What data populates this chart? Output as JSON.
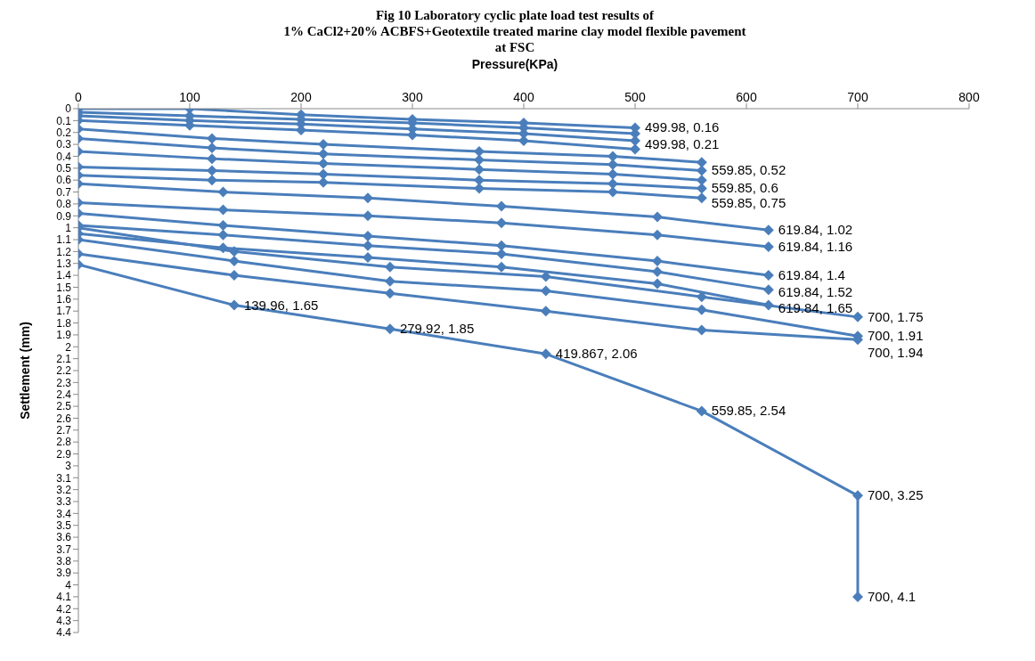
{
  "chart_data": {
    "type": "line",
    "title": "Fig 10 Laboratory cyclic plate load test results of\n1% CaCl2+20% ACBFS+Geotextile treated marine clay model  flexible pavement\nat FSC",
    "xlabel": "Pressure(KPa)",
    "ylabel": "Settlement (mm)",
    "xlim": [
      0,
      800
    ],
    "xticks": [
      0,
      100,
      200,
      300,
      400,
      500,
      600,
      700,
      800
    ],
    "ylim": [
      4.4,
      0
    ],
    "yticks": [
      0,
      0.1,
      0.2,
      0.3,
      0.4,
      0.5,
      0.6,
      0.7,
      0.8,
      0.9,
      1,
      1.1,
      1.2,
      1.3,
      1.4,
      1.5,
      1.6,
      1.7,
      1.8,
      1.9,
      2,
      2.1,
      2.2,
      2.3,
      2.4,
      2.5,
      2.6,
      2.7,
      2.8,
      2.9,
      3,
      3.1,
      3.2,
      3.3,
      3.4,
      3.5,
      3.6,
      3.7,
      3.8,
      3.9,
      4,
      4.1,
      4.2,
      4.3,
      4.4
    ],
    "marker": "diamond",
    "line_style": "solid",
    "series": [
      {
        "color": "#4a7ebb",
        "x": [
          0,
          100,
          200,
          300,
          400,
          499.98
        ],
        "values": [
          0,
          0,
          0.05,
          0.09,
          0.12,
          0.16
        ]
      },
      {
        "color": "#4a7ebb",
        "x": [
          0,
          100,
          200,
          300,
          400,
          499.98
        ],
        "values": [
          0.03,
          0.06,
          0.09,
          0.12,
          0.16,
          0.21
        ]
      },
      {
        "color": "#4a7ebb",
        "x": [
          0,
          100,
          200,
          300,
          400,
          499.98
        ],
        "values": [
          0.06,
          0.1,
          0.13,
          0.17,
          0.21,
          0.27
        ]
      },
      {
        "color": "#4a7ebb",
        "x": [
          0,
          100,
          200,
          300,
          400,
          499.98
        ],
        "values": [
          0.1,
          0.14,
          0.18,
          0.22,
          0.27,
          0.34
        ]
      },
      {
        "color": "#4a7ebb",
        "x": [
          0,
          120,
          220,
          360,
          480,
          559.85
        ],
        "values": [
          0.17,
          0.25,
          0.3,
          0.36,
          0.4,
          0.45
        ]
      },
      {
        "color": "#4a7ebb",
        "x": [
          0,
          120,
          220,
          360,
          480,
          559.85
        ],
        "values": [
          0.25,
          0.33,
          0.38,
          0.43,
          0.47,
          0.52
        ]
      },
      {
        "color": "#4a7ebb",
        "x": [
          0,
          120,
          220,
          360,
          480,
          559.85
        ],
        "values": [
          0.36,
          0.42,
          0.46,
          0.51,
          0.55,
          0.6
        ]
      },
      {
        "color": "#4a7ebb",
        "x": [
          0,
          120,
          220,
          360,
          480,
          559.85
        ],
        "values": [
          0.49,
          0.52,
          0.55,
          0.6,
          0.63,
          0.67
        ]
      },
      {
        "color": "#4a7ebb",
        "x": [
          0,
          120,
          220,
          360,
          480,
          559.85
        ],
        "values": [
          0.56,
          0.6,
          0.62,
          0.67,
          0.7,
          0.75
        ]
      },
      {
        "color": "#4a7ebb",
        "x": [
          0,
          130,
          260,
          380,
          520,
          619.84
        ],
        "values": [
          0.63,
          0.7,
          0.75,
          0.82,
          0.91,
          1.02
        ]
      },
      {
        "color": "#4a7ebb",
        "x": [
          0,
          130,
          260,
          380,
          520,
          619.84
        ],
        "values": [
          0.79,
          0.85,
          0.9,
          0.96,
          1.06,
          1.16
        ]
      },
      {
        "color": "#4a7ebb",
        "x": [
          0,
          130,
          260,
          380,
          520,
          619.84
        ],
        "values": [
          0.88,
          0.98,
          1.07,
          1.15,
          1.28,
          1.4
        ]
      },
      {
        "color": "#4a7ebb",
        "x": [
          0,
          130,
          260,
          380,
          520,
          619.84
        ],
        "values": [
          0.98,
          1.06,
          1.15,
          1.22,
          1.37,
          1.52
        ]
      },
      {
        "color": "#4a7ebb",
        "x": [
          0,
          130,
          260,
          380,
          520,
          619.84
        ],
        "values": [
          1.05,
          1.17,
          1.25,
          1.33,
          1.47,
          1.65
        ]
      },
      {
        "color": "#4a7ebb",
        "x": [
          0,
          139.96,
          279.92,
          419.867,
          559.85,
          700
        ],
        "values": [
          1,
          1.2,
          1.33,
          1.41,
          1.58,
          1.75
        ]
      },
      {
        "color": "#4a7ebb",
        "x": [
          0,
          139.96,
          279.92,
          419.867,
          559.85,
          700
        ],
        "values": [
          1.1,
          1.28,
          1.45,
          1.53,
          1.69,
          1.91
        ]
      },
      {
        "color": "#4a7ebb",
        "x": [
          0,
          139.96,
          279.92,
          419.867,
          559.85,
          700
        ],
        "values": [
          1.22,
          1.4,
          1.55,
          1.7,
          1.86,
          1.94
        ]
      },
      {
        "color": "#4a7ebb",
        "x": [
          0,
          139.96,
          279.92,
          419.867,
          559.85,
          700,
          700
        ],
        "values": [
          1.31,
          1.65,
          1.85,
          2.06,
          2.54,
          3.25,
          4.1
        ]
      }
    ],
    "annotations": [
      {
        "text": "499.98, 0.16",
        "x": 499.98,
        "y": 0.16
      },
      {
        "text": "499.98, 0.21",
        "x": 499.98,
        "y": 0.21
      },
      {
        "text": "559.85, 0.52",
        "x": 559.85,
        "y": 0.52
      },
      {
        "text": "559.85, 0.6",
        "x": 559.85,
        "y": 0.6
      },
      {
        "text": "559.85, 0.75",
        "x": 559.85,
        "y": 0.75
      },
      {
        "text": "619.84, 1.02",
        "x": 619.84,
        "y": 1.02
      },
      {
        "text": "619.84, 1.16",
        "x": 619.84,
        "y": 1.16
      },
      {
        "text": "619.84, 1.4",
        "x": 619.84,
        "y": 1.4
      },
      {
        "text": "619.84, 1.52",
        "x": 619.84,
        "y": 1.52
      },
      {
        "text": "619.84, 1.65",
        "x": 619.84,
        "y": 1.65
      },
      {
        "text": "700, 1.75",
        "x": 700,
        "y": 1.75
      },
      {
        "text": "700, 1.91",
        "x": 700,
        "y": 1.91
      },
      {
        "text": "700, 1.94",
        "x": 700,
        "y": 1.94
      },
      {
        "text": "139.96, 1.65",
        "x": 139.96,
        "y": 1.65
      },
      {
        "text": "279.92, 1.85",
        "x": 279.92,
        "y": 1.85
      },
      {
        "text": "419.867, 2.06",
        "x": 419.867,
        "y": 2.06
      },
      {
        "text": "559.85, 2.54",
        "x": 559.85,
        "y": 2.54
      },
      {
        "text": "700, 3.25",
        "x": 700,
        "y": 3.25
      },
      {
        "text": "700, 4.1",
        "x": 700,
        "y": 4.1
      }
    ]
  }
}
